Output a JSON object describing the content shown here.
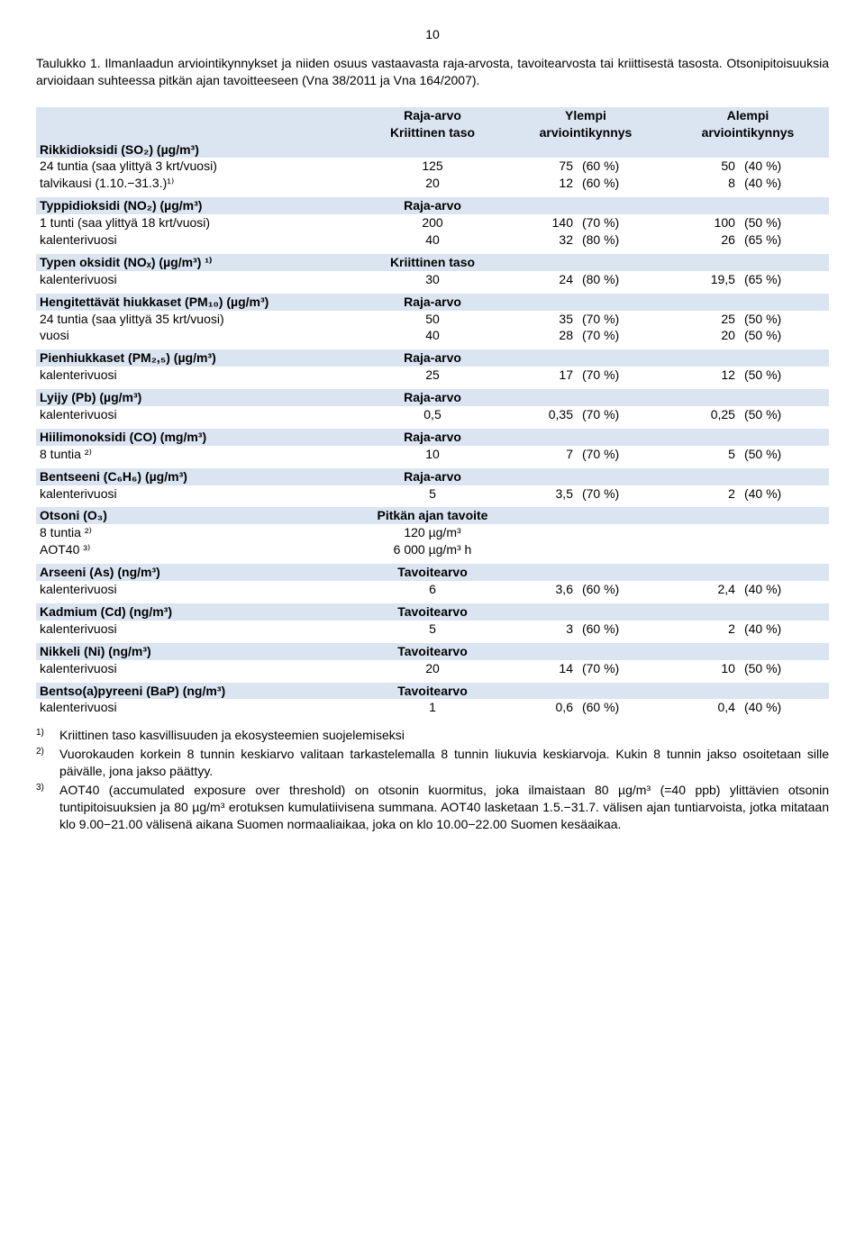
{
  "page_number": "10",
  "intro_label": "Taulukko 1.",
  "intro_text": "Ilmanlaadun arviointikynnykset ja niiden osuus vastaavasta raja-arvosta, tavoitearvosta tai kriittisestä tasosta. Otsonipitoisuuksia arvioidaan suhteessa pitkän ajan tavoitteeseen (Vna 38/2011 ja Vna 164/2007).",
  "headers": {
    "ref": "Raja-arvo Kriittinen taso",
    "upper": "Ylempi arviointikynnys",
    "lower": "Alempi arviointikynnys"
  },
  "shade_color": "#dbe5f1",
  "sections": [
    {
      "title": "Rikkidioksidi (SO₂) (µg/m³)",
      "ref_label": "",
      "shaded": true,
      "rows": [
        {
          "name": "24 tuntia (saa ylittyä 3 krt/vuosi)",
          "ref": "125",
          "uv": "75",
          "up": "(60 %)",
          "lv": "50",
          "lp": "(40 %)"
        },
        {
          "name": "talvikausi (1.10.−31.3.)¹⁾",
          "ref": "20",
          "uv": "12",
          "up": "(60 %)",
          "lv": "8",
          "lp": "(40 %)"
        }
      ]
    },
    {
      "title": "Typpidioksidi (NO₂) (µg/m³)",
      "ref_label": "Raja-arvo",
      "shaded": true,
      "rows": [
        {
          "name": "1 tunti (saa ylittyä 18 krt/vuosi)",
          "ref": "200",
          "uv": "140",
          "up": "(70 %)",
          "lv": "100",
          "lp": "(50 %)"
        },
        {
          "name": "kalenterivuosi",
          "ref": "40",
          "uv": "32",
          "up": "(80 %)",
          "lv": "26",
          "lp": "(65 %)"
        }
      ]
    },
    {
      "title": "Typen oksidit (NOₓ) (µg/m³) ¹⁾",
      "ref_label": "Kriittinen taso",
      "shaded": true,
      "rows": [
        {
          "name": "kalenterivuosi",
          "ref": "30",
          "uv": "24",
          "up": "(80 %)",
          "lv": "19,5",
          "lp": "(65 %)"
        }
      ]
    },
    {
      "title": "Hengitettävät hiukkaset (PM₁₀) (µg/m³)",
      "ref_label": "Raja-arvo",
      "shaded": true,
      "rows": [
        {
          "name": "24 tuntia (saa ylittyä 35 krt/vuosi)",
          "ref": "50",
          "uv": "35",
          "up": "(70 %)",
          "lv": "25",
          "lp": "(50 %)"
        },
        {
          "name": "vuosi",
          "ref": "40",
          "uv": "28",
          "up": "(70 %)",
          "lv": "20",
          "lp": "(50 %)"
        }
      ]
    },
    {
      "title": "Pienhiukkaset (PM₂,₅) (µg/m³)",
      "ref_label": "Raja-arvo",
      "shaded": true,
      "rows": [
        {
          "name": "kalenterivuosi",
          "ref": "25",
          "uv": "17",
          "up": "(70 %)",
          "lv": "12",
          "lp": "(50 %)"
        }
      ]
    },
    {
      "title": "Lyijy (Pb) (µg/m³)",
      "ref_label": "Raja-arvo",
      "shaded": true,
      "rows": [
        {
          "name": "kalenterivuosi",
          "ref": "0,5",
          "uv": "0,35",
          "up": "(70 %)",
          "lv": "0,25",
          "lp": "(50 %)"
        }
      ]
    },
    {
      "title": "Hiilimonoksidi (CO) (mg/m³)",
      "ref_label": "Raja-arvo",
      "shaded": true,
      "rows": [
        {
          "name": "8 tuntia ²⁾",
          "ref": "10",
          "uv": "7",
          "up": "(70 %)",
          "lv": "5",
          "lp": "(50 %)"
        }
      ]
    },
    {
      "title": "Bentseeni (C₆H₆) (µg/m³)",
      "ref_label": "Raja-arvo",
      "shaded": true,
      "rows": [
        {
          "name": "kalenterivuosi",
          "ref": "5",
          "uv": "3,5",
          "up": "(70 %)",
          "lv": "2",
          "lp": "(40 %)"
        }
      ]
    },
    {
      "title": "Otsoni (O₃)",
      "ref_label": "Pitkän ajan tavoite",
      "shaded": true,
      "rows": [
        {
          "name": "8 tuntia ²⁾",
          "ref": "120 µg/m³",
          "uv": "",
          "up": "",
          "lv": "",
          "lp": ""
        },
        {
          "name": "AOT40 ³⁾",
          "ref": "6 000 µg/m³ h",
          "uv": "",
          "up": "",
          "lv": "",
          "lp": ""
        }
      ]
    },
    {
      "title": "Arseeni (As) (ng/m³)",
      "ref_label": "Tavoitearvo",
      "shaded": true,
      "rows": [
        {
          "name": "kalenterivuosi",
          "ref": "6",
          "uv": "3,6",
          "up": "(60 %)",
          "lv": "2,4",
          "lp": "(40 %)"
        }
      ]
    },
    {
      "title": "Kadmium (Cd) (ng/m³)",
      "ref_label": "Tavoitearvo",
      "shaded": true,
      "rows": [
        {
          "name": "kalenterivuosi",
          "ref": "5",
          "uv": "3",
          "up": "(60 %)",
          "lv": "2",
          "lp": "(40 %)"
        }
      ]
    },
    {
      "title": "Nikkeli (Ni) (ng/m³)",
      "ref_label": "Tavoitearvo",
      "shaded": true,
      "rows": [
        {
          "name": "kalenterivuosi",
          "ref": "20",
          "uv": "14",
          "up": "(70 %)",
          "lv": "10",
          "lp": "(50 %)"
        }
      ]
    },
    {
      "title": "Bentso(a)pyreeni (BaP) (ng/m³)",
      "ref_label": "Tavoitearvo",
      "shaded": true,
      "rows": [
        {
          "name": "kalenterivuosi",
          "ref": "1",
          "uv": "0,6",
          "up": "(60 %)",
          "lv": "0,4",
          "lp": "(40 %)"
        }
      ]
    }
  ],
  "footnotes": [
    {
      "num": "1)",
      "text": "Kriittinen taso kasvillisuuden ja ekosysteemien suojelemiseksi"
    },
    {
      "num": "2)",
      "text": "Vuorokauden korkein 8 tunnin keskiarvo valitaan tarkastelemalla 8 tunnin liukuvia keskiarvoja. Kukin 8 tunnin jakso osoitetaan sille päivälle, jona jakso päättyy."
    },
    {
      "num": "3)",
      "text": "AOT40 (accumulated exposure over threshold) on otsonin kuormitus, joka ilmaistaan 80 µg/m³ (=40 ppb) ylittävien otsonin tuntipitoisuuksien ja 80 µg/m³ erotuksen kumulatiivisena summana. AOT40 lasketaan 1.5.−31.7. välisen ajan tuntiarvoista, jotka mitataan klo 9.00−21.00 välisenä aikana Suomen normaaliaikaa, joka on klo 10.00−22.00 Suomen kesäaikaa."
    }
  ]
}
